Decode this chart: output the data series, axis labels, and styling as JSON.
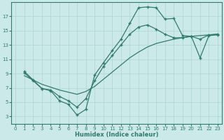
{
  "xlabel": "Humidex (Indice chaleur)",
  "bg_color": "#cce9e9",
  "grid_color": "#aad4d4",
  "line_color": "#2d7d6e",
  "xlim": [
    -0.5,
    23.5
  ],
  "ylim": [
    2,
    19
  ],
  "xticks": [
    0,
    1,
    2,
    3,
    4,
    5,
    6,
    7,
    8,
    9,
    10,
    11,
    12,
    13,
    14,
    15,
    16,
    17,
    18,
    19,
    20,
    21,
    22,
    23
  ],
  "yticks": [
    3,
    5,
    7,
    9,
    11,
    13,
    15,
    17
  ],
  "line1_x": [
    1,
    2,
    3,
    4,
    5,
    6,
    7,
    8,
    9,
    10,
    11,
    12,
    13,
    14,
    15,
    16,
    17,
    18,
    19,
    20,
    21,
    22,
    23
  ],
  "line1_y": [
    9.3,
    8.1,
    6.9,
    6.6,
    5.2,
    4.7,
    3.2,
    4.0,
    8.8,
    10.5,
    12.2,
    13.8,
    16.0,
    18.2,
    18.3,
    18.2,
    16.6,
    16.7,
    14.3,
    14.2,
    11.2,
    14.3,
    14.4
  ],
  "line2_x": [
    1,
    2,
    3,
    4,
    5,
    6,
    7,
    8,
    9,
    10,
    11,
    12,
    13,
    14,
    15,
    16,
    17,
    18,
    19,
    20,
    21,
    22,
    23
  ],
  "line2_y": [
    8.7,
    8.1,
    7.5,
    7.1,
    6.7,
    6.4,
    6.1,
    6.5,
    7.2,
    8.2,
    9.2,
    10.2,
    11.2,
    12.0,
    12.7,
    13.2,
    13.5,
    13.8,
    14.0,
    14.2,
    14.3,
    14.4,
    14.5
  ],
  "line3_x": [
    1,
    2,
    3,
    4,
    5,
    6,
    7,
    8,
    9,
    10,
    11,
    12,
    13,
    14,
    15,
    16,
    17,
    18,
    19,
    20,
    21,
    22,
    23
  ],
  "line3_y": [
    9.1,
    8.0,
    6.9,
    6.7,
    5.8,
    5.2,
    4.3,
    5.5,
    8.0,
    10.0,
    11.5,
    13.0,
    14.5,
    15.5,
    15.8,
    15.2,
    14.5,
    14.0,
    14.0,
    14.2,
    13.8,
    14.4,
    14.5
  ]
}
